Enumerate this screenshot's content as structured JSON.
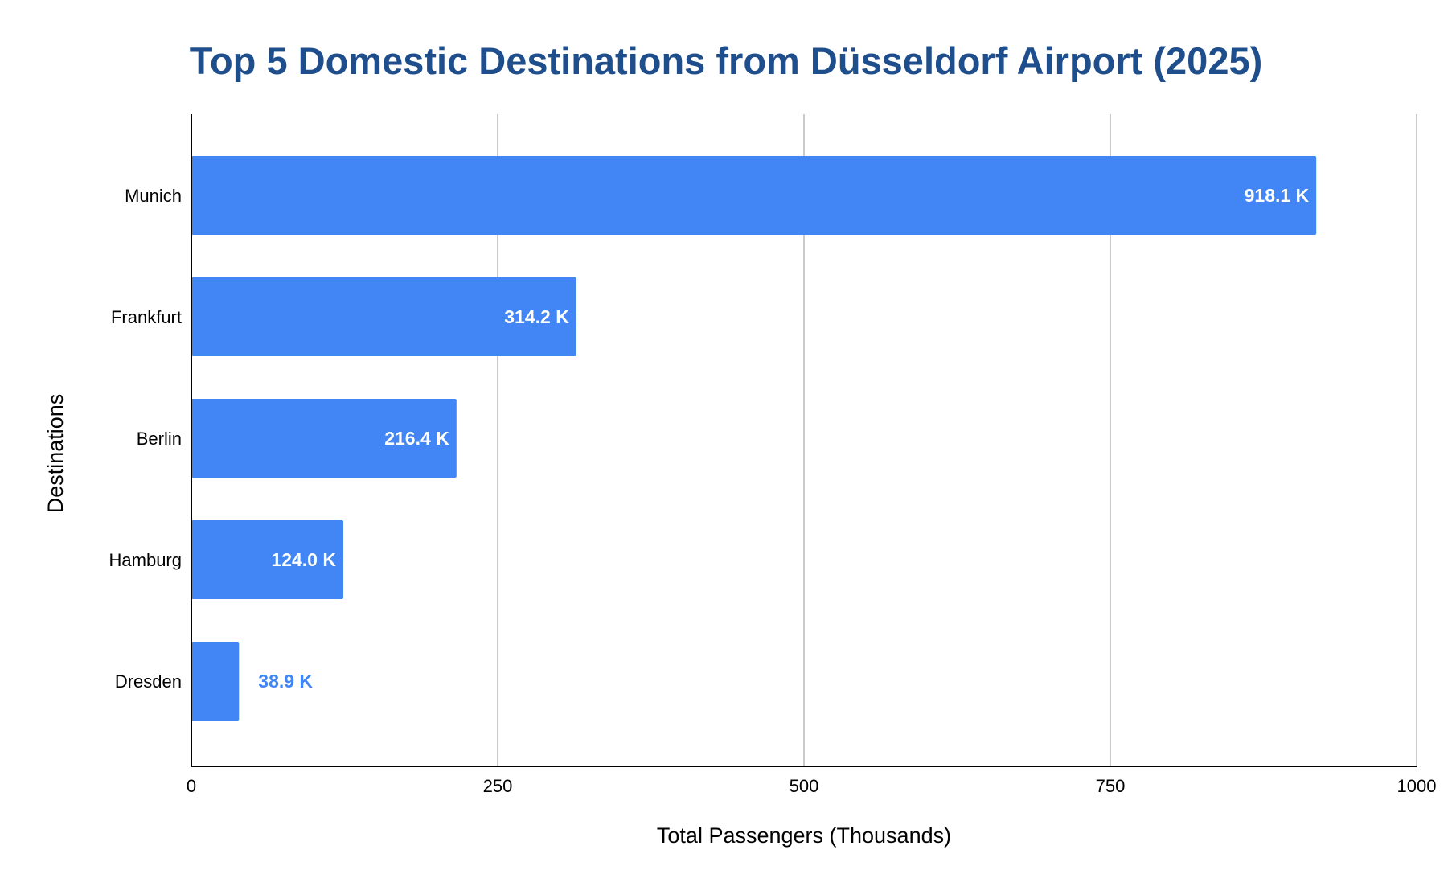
{
  "chart_data": {
    "type": "bar",
    "orientation": "horizontal",
    "title": "Top 5 Domestic Destinations from Düsseldorf Airport (2025)",
    "xlabel": "Total Passengers (Thousands)",
    "ylabel": "Destinations",
    "categories": [
      "Munich",
      "Frankfurt",
      "Berlin",
      "Hamburg",
      "Dresden"
    ],
    "values": [
      918.1,
      314.2,
      216.4,
      124.0,
      38.9
    ],
    "data_labels": [
      "918.1 K",
      "314.2 K",
      "216.4 K",
      "124.0 K",
      "38.9 K"
    ],
    "xlim": [
      0,
      1000
    ],
    "xticks": [
      0,
      250,
      500,
      750,
      1000
    ],
    "xtick_labels": [
      "0",
      "250",
      "500",
      "750",
      "1000"
    ],
    "grid": "vertical",
    "legend": "none",
    "colors": {
      "bar": "#4285f4",
      "title": "#1f4e8c",
      "label_inside": "#ffffff",
      "label_outside": "#4285f4",
      "grid": "#cccccc",
      "axis": "#000000",
      "text": "#000000"
    }
  }
}
